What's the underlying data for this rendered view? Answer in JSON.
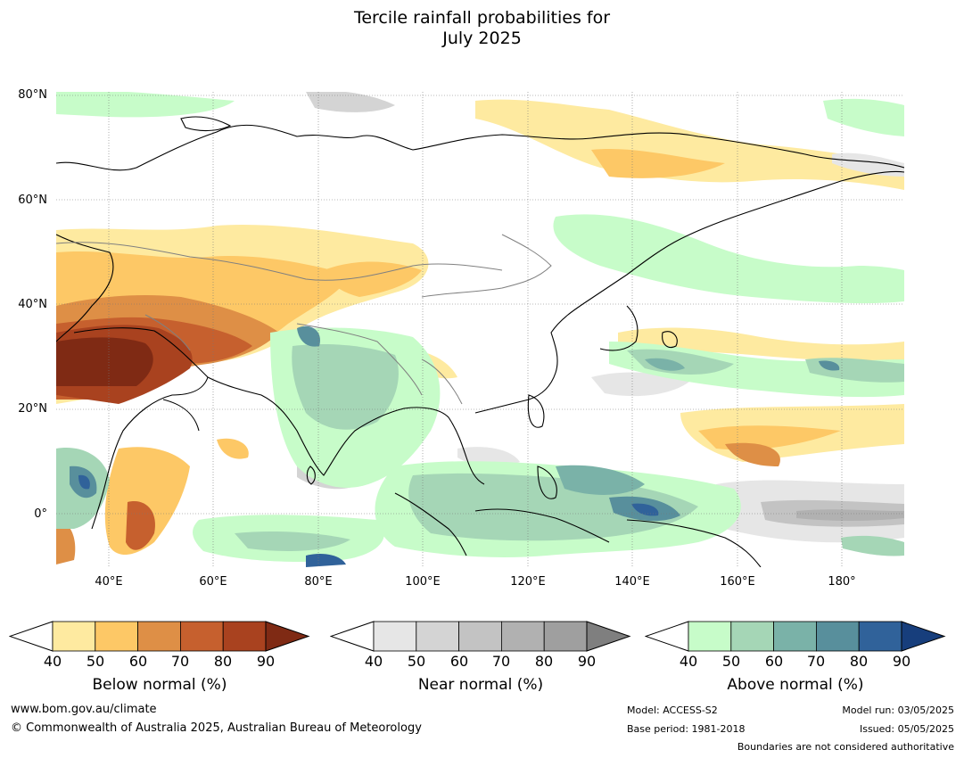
{
  "title": {
    "line1": "Tercile rainfall probabilities for",
    "line2": "July 2025"
  },
  "map": {
    "lat_labels": [
      "80°N",
      "60°N",
      "40°N",
      "20°N",
      "0°"
    ],
    "lon_labels": [
      "40°E",
      "60°E",
      "80°E",
      "100°E",
      "120°E",
      "140°E",
      "160°E",
      "180°"
    ]
  },
  "legends": [
    {
      "label": "Below normal (%)",
      "ticks": [
        "40",
        "50",
        "60",
        "70",
        "80",
        "90"
      ],
      "colors": [
        "#ffffff",
        "#feeaa0",
        "#fdc866",
        "#de8f46",
        "#c6602e",
        "#a9421f",
        "#7f2a14"
      ]
    },
    {
      "label": "Near normal (%)",
      "ticks": [
        "40",
        "50",
        "60",
        "70",
        "80",
        "90"
      ],
      "colors": [
        "#ffffff",
        "#e6e6e6",
        "#d4d4d4",
        "#c3c3c3",
        "#b1b1b1",
        "#9f9f9f",
        "#7f7f7f"
      ]
    },
    {
      "label": "Above normal (%)",
      "ticks": [
        "40",
        "50",
        "60",
        "70",
        "80",
        "90"
      ],
      "colors": [
        "#ffffff",
        "#c7fcc9",
        "#a5d6b6",
        "#7ab2a8",
        "#588f9c",
        "#30629a",
        "#173e7c"
      ]
    }
  ],
  "footer": {
    "website": "www.bom.gov.au/climate",
    "copyright": "© Commonwealth of Australia 2025, Australian Bureau of Meteorology",
    "model": "Model: ACCESS-S2",
    "base_period": "Base period: 1981-2018",
    "model_run": "Model run: 03/05/2025",
    "issued": "Issued: 05/05/2025",
    "disclaimer": "Boundaries are not considered authoritative"
  }
}
